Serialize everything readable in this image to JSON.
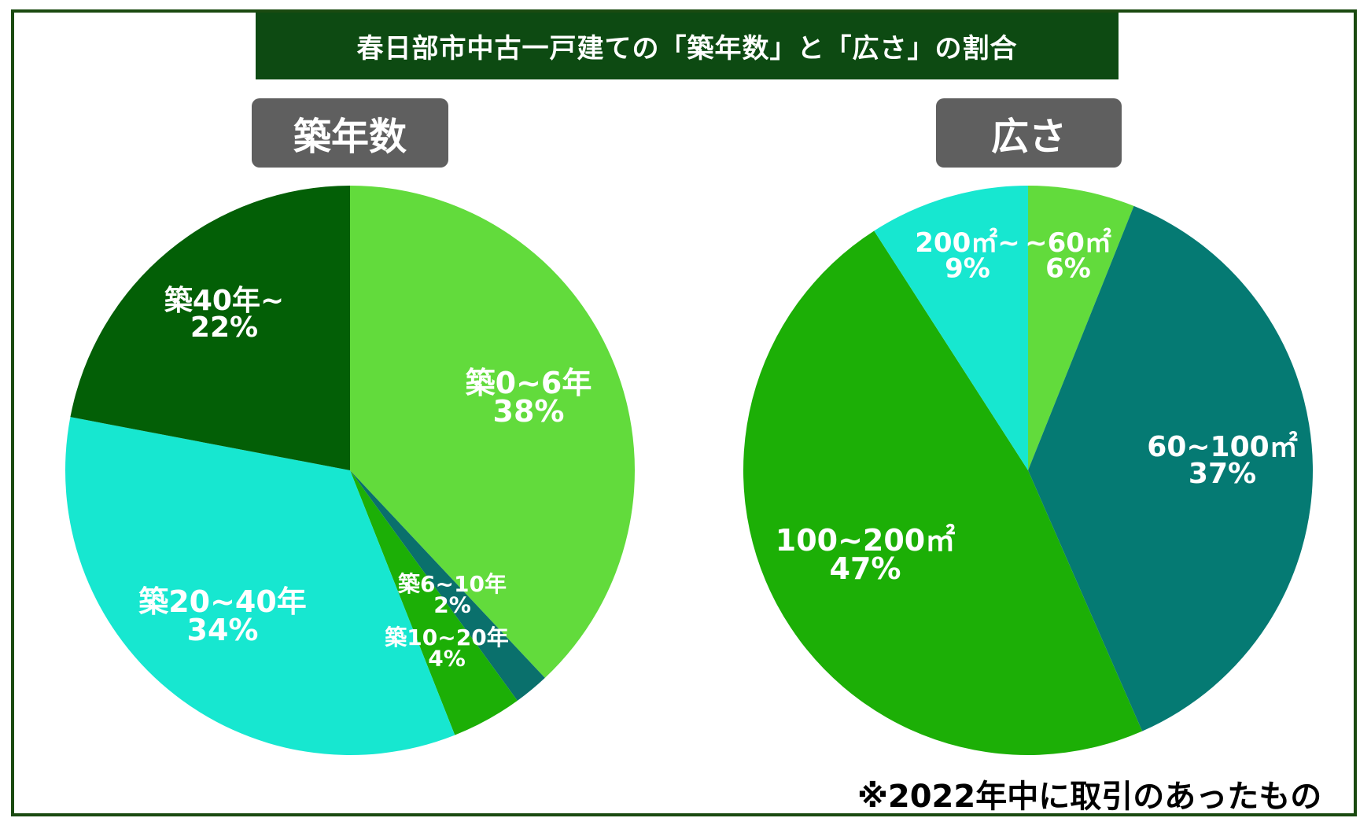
{
  "title": "春日部市中古一戸建ての「築年数」と「広さ」の割合",
  "footnote": "※2022年中に取引のあったもの",
  "chart_data": [
    {
      "type": "pie",
      "title": "築年数",
      "slices": [
        {
          "label": "築0~6年",
          "value": 38,
          "value_label": "38%",
          "color": "#62db3c"
        },
        {
          "label": "築6~10年",
          "value": 2,
          "value_label": "2%",
          "color": "#0a706c"
        },
        {
          "label": "築10~20年",
          "value": 4,
          "value_label": "4%",
          "color": "#1caf06"
        },
        {
          "label": "築20~40年",
          "value": 34,
          "value_label": "34%",
          "color": "#17e7d0"
        },
        {
          "label": "築40年~",
          "value": 22,
          "value_label": "22%",
          "color": "#035f06"
        }
      ]
    },
    {
      "type": "pie",
      "title": "広さ",
      "slices": [
        {
          "label": "~60㎡",
          "value": 6,
          "value_label": "6%",
          "color": "#62db3c"
        },
        {
          "label": "60~100㎡",
          "value": 37,
          "value_label": "37%",
          "color": "#057a73"
        },
        {
          "label": "100~200㎡",
          "value": 47,
          "value_label": "47%",
          "color": "#1caf06"
        },
        {
          "label": "200㎡~",
          "value": 9,
          "value_label": "9%",
          "color": "#17e7d0"
        }
      ]
    }
  ]
}
